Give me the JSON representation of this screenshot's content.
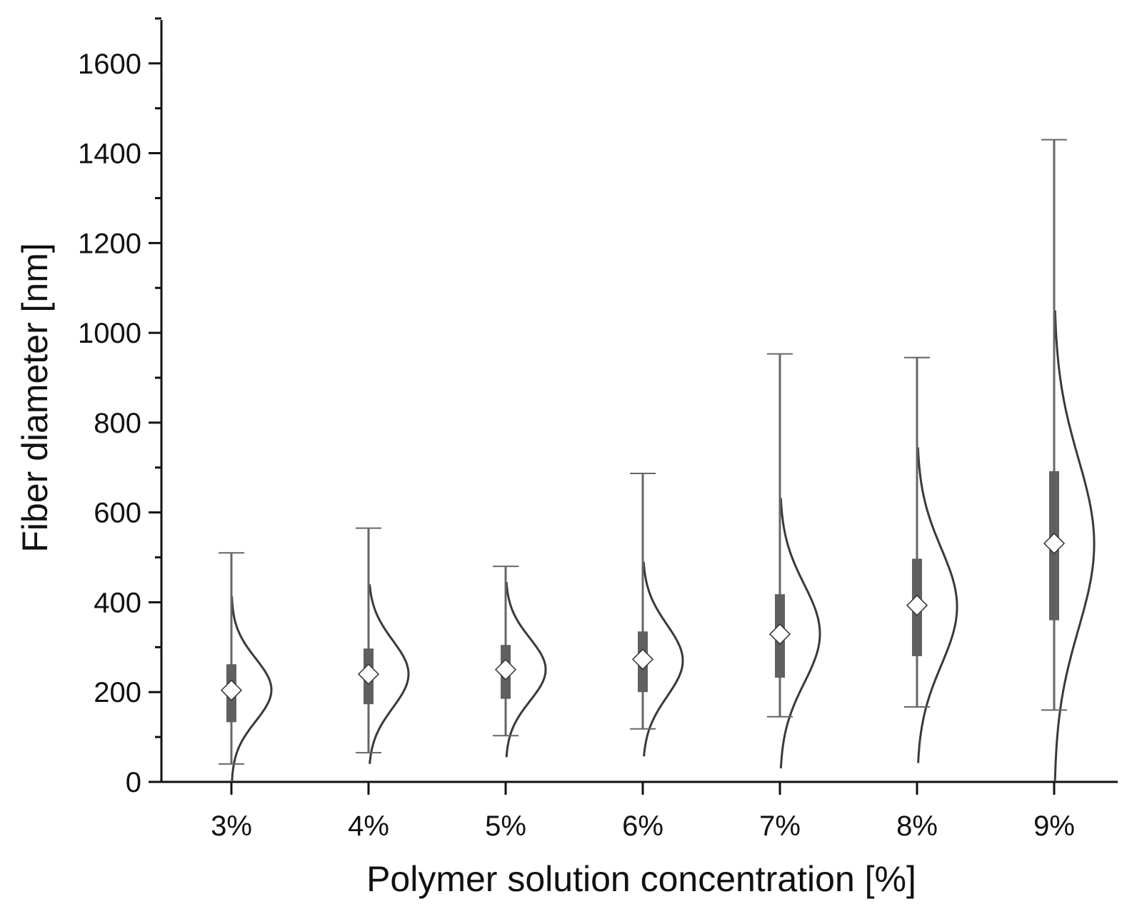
{
  "chart_data": {
    "type": "box",
    "xlabel": "Polymer solution concentration [%]",
    "ylabel": "Fiber diameter [nm]",
    "ylim": [
      0,
      1700
    ],
    "y_major_ticks": [
      0,
      200,
      400,
      600,
      800,
      1000,
      1200,
      1400,
      1600
    ],
    "y_minor_step": 100,
    "grid": false,
    "legend": "none",
    "categories": [
      "3%",
      "4%",
      "5%",
      "6%",
      "7%",
      "8%",
      "9%"
    ],
    "boxes": [
      {
        "category": "3%",
        "whisker_low": 40,
        "q1": 133,
        "mean": 204,
        "q3": 262,
        "whisker_high": 510
      },
      {
        "category": "4%",
        "whisker_low": 65,
        "q1": 173,
        "mean": 240,
        "q3": 297,
        "whisker_high": 565
      },
      {
        "category": "5%",
        "whisker_low": 103,
        "q1": 185,
        "mean": 250,
        "q3": 305,
        "whisker_high": 480
      },
      {
        "category": "6%",
        "whisker_low": 118,
        "q1": 200,
        "mean": 273,
        "q3": 335,
        "whisker_high": 687
      },
      {
        "category": "7%",
        "whisker_low": 145,
        "q1": 232,
        "mean": 329,
        "q3": 418,
        "whisker_high": 953
      },
      {
        "category": "8%",
        "whisker_low": 167,
        "q1": 280,
        "mean": 393,
        "q3": 497,
        "whisker_high": 945
      },
      {
        "category": "9%",
        "whisker_low": 160,
        "q1": 360,
        "mean": 531,
        "q3": 692,
        "whisker_high": 1430
      }
    ],
    "distributions": [
      {
        "category": "3%",
        "center": 205,
        "sd": 70,
        "y_min": 0,
        "y_max": 413
      },
      {
        "category": "4%",
        "center": 240,
        "sd": 75,
        "y_min": 40,
        "y_max": 440
      },
      {
        "category": "5%",
        "center": 250,
        "sd": 70,
        "y_min": 55,
        "y_max": 445
      },
      {
        "category": "6%",
        "center": 270,
        "sd": 80,
        "y_min": 57,
        "y_max": 490
      },
      {
        "category": "7%",
        "center": 330,
        "sd": 110,
        "y_min": 30,
        "y_max": 632
      },
      {
        "category": "8%",
        "center": 390,
        "sd": 130,
        "y_min": 42,
        "y_max": 745
      },
      {
        "category": "9%",
        "center": 530,
        "sd": 190,
        "y_min": 0,
        "y_max": 1050
      }
    ],
    "colors": {
      "box": "#606060",
      "whisker": "#666666",
      "curve": "#3a3a3a",
      "axis": "#111111",
      "mean_marker_fill": "#ffffff",
      "mean_marker_stroke": "#333333"
    }
  }
}
